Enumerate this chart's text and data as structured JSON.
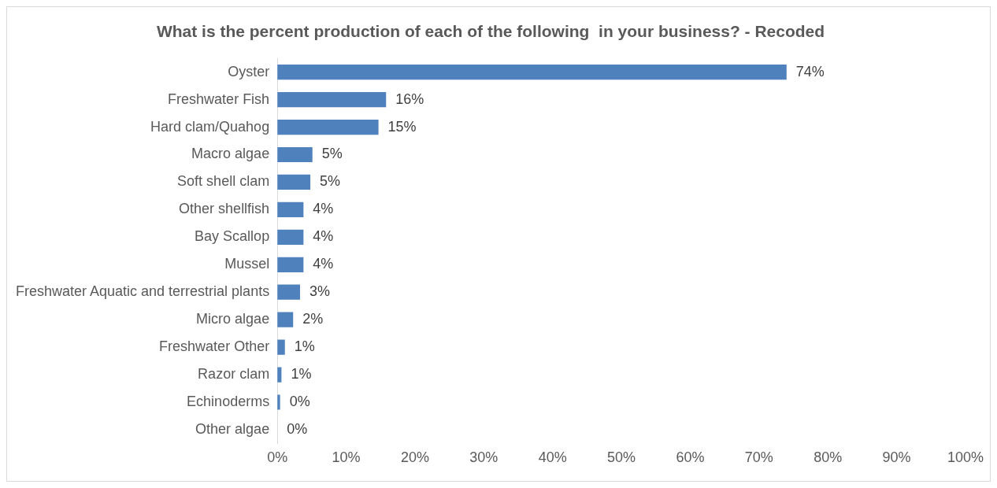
{
  "chart_data": {
    "type": "bar",
    "orientation": "horizontal",
    "title": "What is the percent production of each of the following  in your business? - Recoded",
    "categories": [
      "Oyster",
      "Freshwater Fish",
      "Hard clam/Quahog",
      "Macro algae",
      "Soft shell clam",
      "Other shellfish",
      "Bay Scallop",
      "Mussel",
      "Freshwater Aquatic and terrestrial plants",
      "Micro algae",
      "Freshwater Other",
      "Razor clam",
      "Echinoderms",
      "Other algae"
    ],
    "values": [
      74,
      15.8,
      14.7,
      5.1,
      4.8,
      3.8,
      3.8,
      3.8,
      3.3,
      2.3,
      1.1,
      0.6,
      0.4,
      0
    ],
    "value_labels": [
      "74%",
      "16%",
      "15%",
      "5%",
      "5%",
      "4%",
      "4%",
      "4%",
      "3%",
      "2%",
      "1%",
      "1%",
      "0%",
      "0%"
    ],
    "color": "#4f81bd",
    "xlim": [
      0,
      100
    ],
    "xticks": [
      {
        "value": 0,
        "label": "0%"
      },
      {
        "value": 10,
        "label": "10%"
      },
      {
        "value": 20,
        "label": "20%"
      },
      {
        "value": 30,
        "label": "30%"
      },
      {
        "value": 40,
        "label": "40%"
      },
      {
        "value": 50,
        "label": "50%"
      },
      {
        "value": 60,
        "label": "60%"
      },
      {
        "value": 70,
        "label": "70%"
      },
      {
        "value": 80,
        "label": "80%"
      },
      {
        "value": 90,
        "label": "90%"
      },
      {
        "value": 100,
        "label": "100%"
      }
    ],
    "grid": false,
    "legend": false
  }
}
